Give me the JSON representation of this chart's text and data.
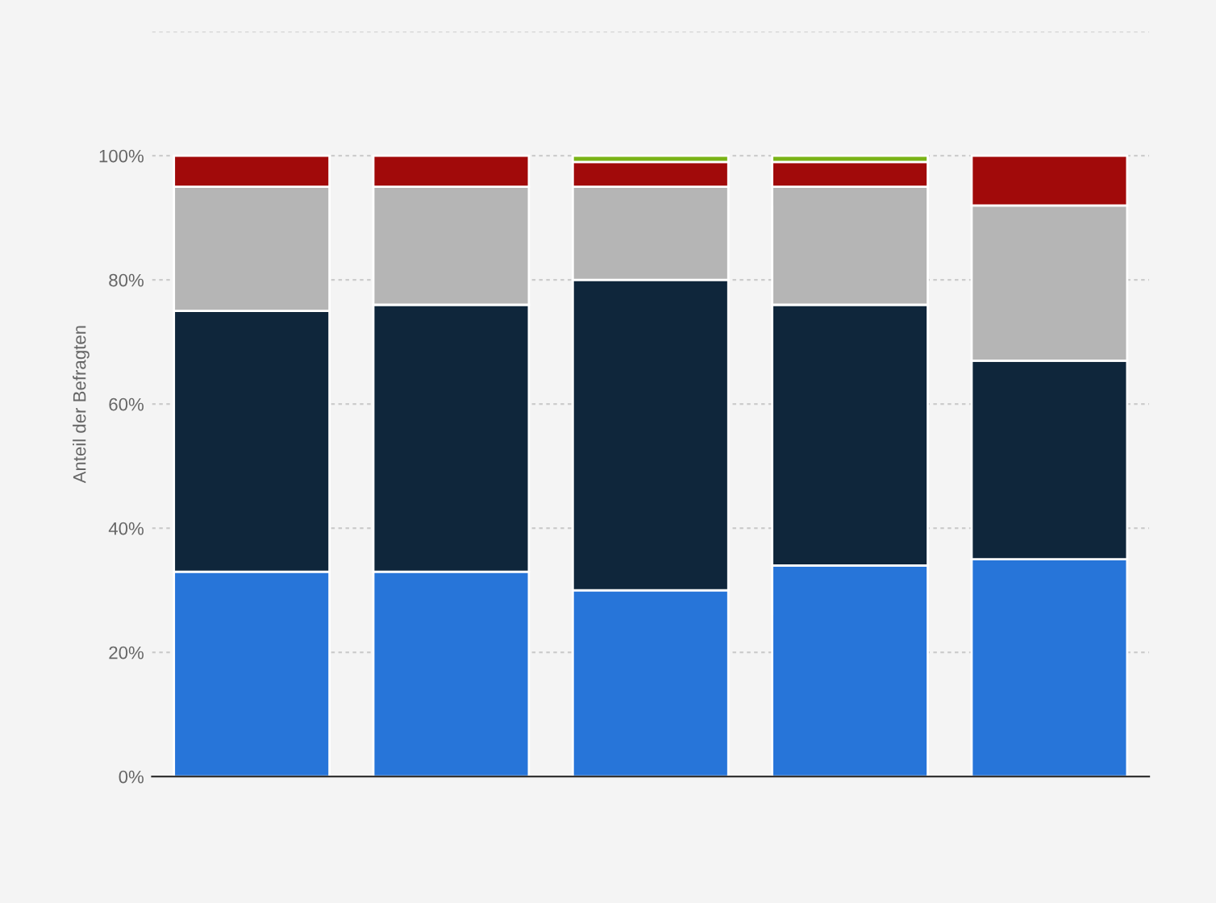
{
  "chart_data": {
    "type": "bar",
    "stacked": true,
    "ylabel": "Anteil der Befragten",
    "categories": [
      null,
      null,
      null,
      null,
      null
    ],
    "series": [
      {
        "color": "#2775d9",
        "values": [
          33,
          33,
          30,
          34,
          35
        ]
      },
      {
        "color": "#0f263b",
        "values": [
          42,
          43,
          50,
          42,
          32
        ]
      },
      {
        "color": "#b5b5b5",
        "values": [
          20,
          19,
          15,
          19,
          25
        ]
      },
      {
        "color": "#a10a0a",
        "values": [
          5,
          5,
          4,
          4,
          8
        ]
      },
      {
        "color": "#7ab317",
        "values": [
          null,
          null,
          1,
          1,
          null
        ]
      }
    ],
    "ylim": [
      0,
      120
    ],
    "yticks": [
      {
        "value": 0,
        "label": "0%"
      },
      {
        "value": 20,
        "label": "20%"
      },
      {
        "value": 40,
        "label": "40%"
      },
      {
        "value": 60,
        "label": "60%"
      },
      {
        "value": 80,
        "label": "80%"
      },
      {
        "value": 100,
        "label": "100%"
      },
      {
        "value": 120,
        "label": null
      }
    ],
    "grid": "y",
    "legend": false
  }
}
